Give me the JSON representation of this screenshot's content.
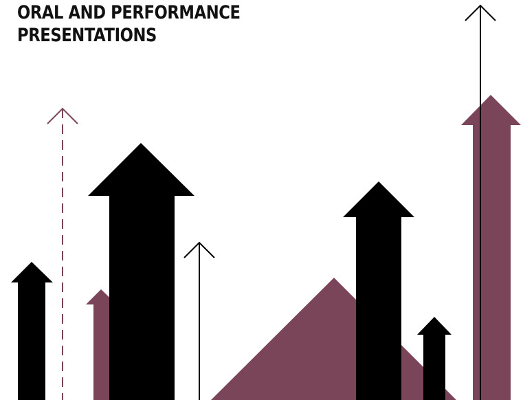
{
  "title": {
    "line1": "ORAL AND PERFORMANCE",
    "line2": "PRESENTATIONS"
  },
  "colors": {
    "background": "#ffffff",
    "black": "#000000",
    "accent": "#7b4559"
  },
  "icons": [
    "arrow-up-icon",
    "thin-arrow-up-icon",
    "dashed-arrow-up-icon",
    "triangle-shape"
  ]
}
